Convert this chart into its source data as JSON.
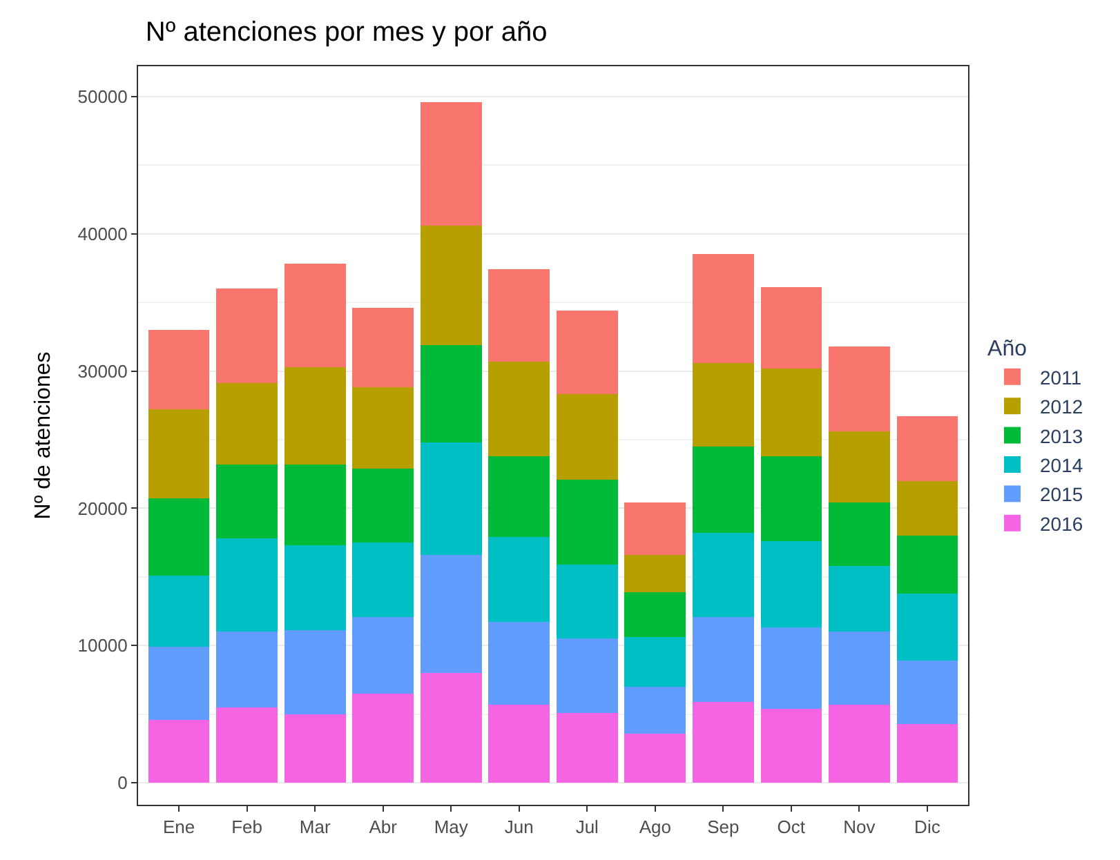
{
  "chart_data": {
    "type": "bar",
    "title": "Nº atenciones por mes y por año",
    "ylabel": "Nº de atenciones",
    "legend_title": "Año",
    "categories": [
      "Ene",
      "Feb",
      "Mar",
      "Abr",
      "May",
      "Jun",
      "Jul",
      "Ago",
      "Sep",
      "Oct",
      "Nov",
      "Dic"
    ],
    "stacked": true,
    "series": [
      {
        "name": "2016",
        "color": "#f564e3",
        "values": [
          4600,
          5500,
          5000,
          6500,
          8000,
          5700,
          5100,
          3600,
          5900,
          5400,
          5700,
          4300
        ]
      },
      {
        "name": "2015",
        "color": "#619cff",
        "values": [
          5300,
          5500,
          6100,
          5600,
          8600,
          6000,
          5400,
          3400,
          6200,
          5900,
          5300,
          4600
        ]
      },
      {
        "name": "2014",
        "color": "#00bfc4",
        "values": [
          5200,
          6800,
          6200,
          5400,
          8200,
          6200,
          5400,
          3600,
          6100,
          6300,
          4800,
          4900
        ]
      },
      {
        "name": "2013",
        "color": "#00ba38",
        "values": [
          5600,
          5400,
          5900,
          5400,
          7100,
          5900,
          6200,
          3300,
          6300,
          6200,
          4600,
          4200
        ]
      },
      {
        "name": "2012",
        "color": "#b79f00",
        "values": [
          6500,
          5900,
          7100,
          5900,
          8700,
          6900,
          6200,
          2700,
          6100,
          6400,
          5200,
          4000
        ]
      },
      {
        "name": "2011",
        "color": "#f8766d",
        "values": [
          5800,
          6900,
          7500,
          5800,
          9000,
          6700,
          6100,
          3800,
          7900,
          5900,
          6200,
          4700
        ]
      }
    ],
    "ylim": [
      -1600,
      52200
    ],
    "yticks": [
      0,
      10000,
      20000,
      30000,
      40000,
      50000
    ],
    "grid": "y",
    "legend": "right"
  }
}
